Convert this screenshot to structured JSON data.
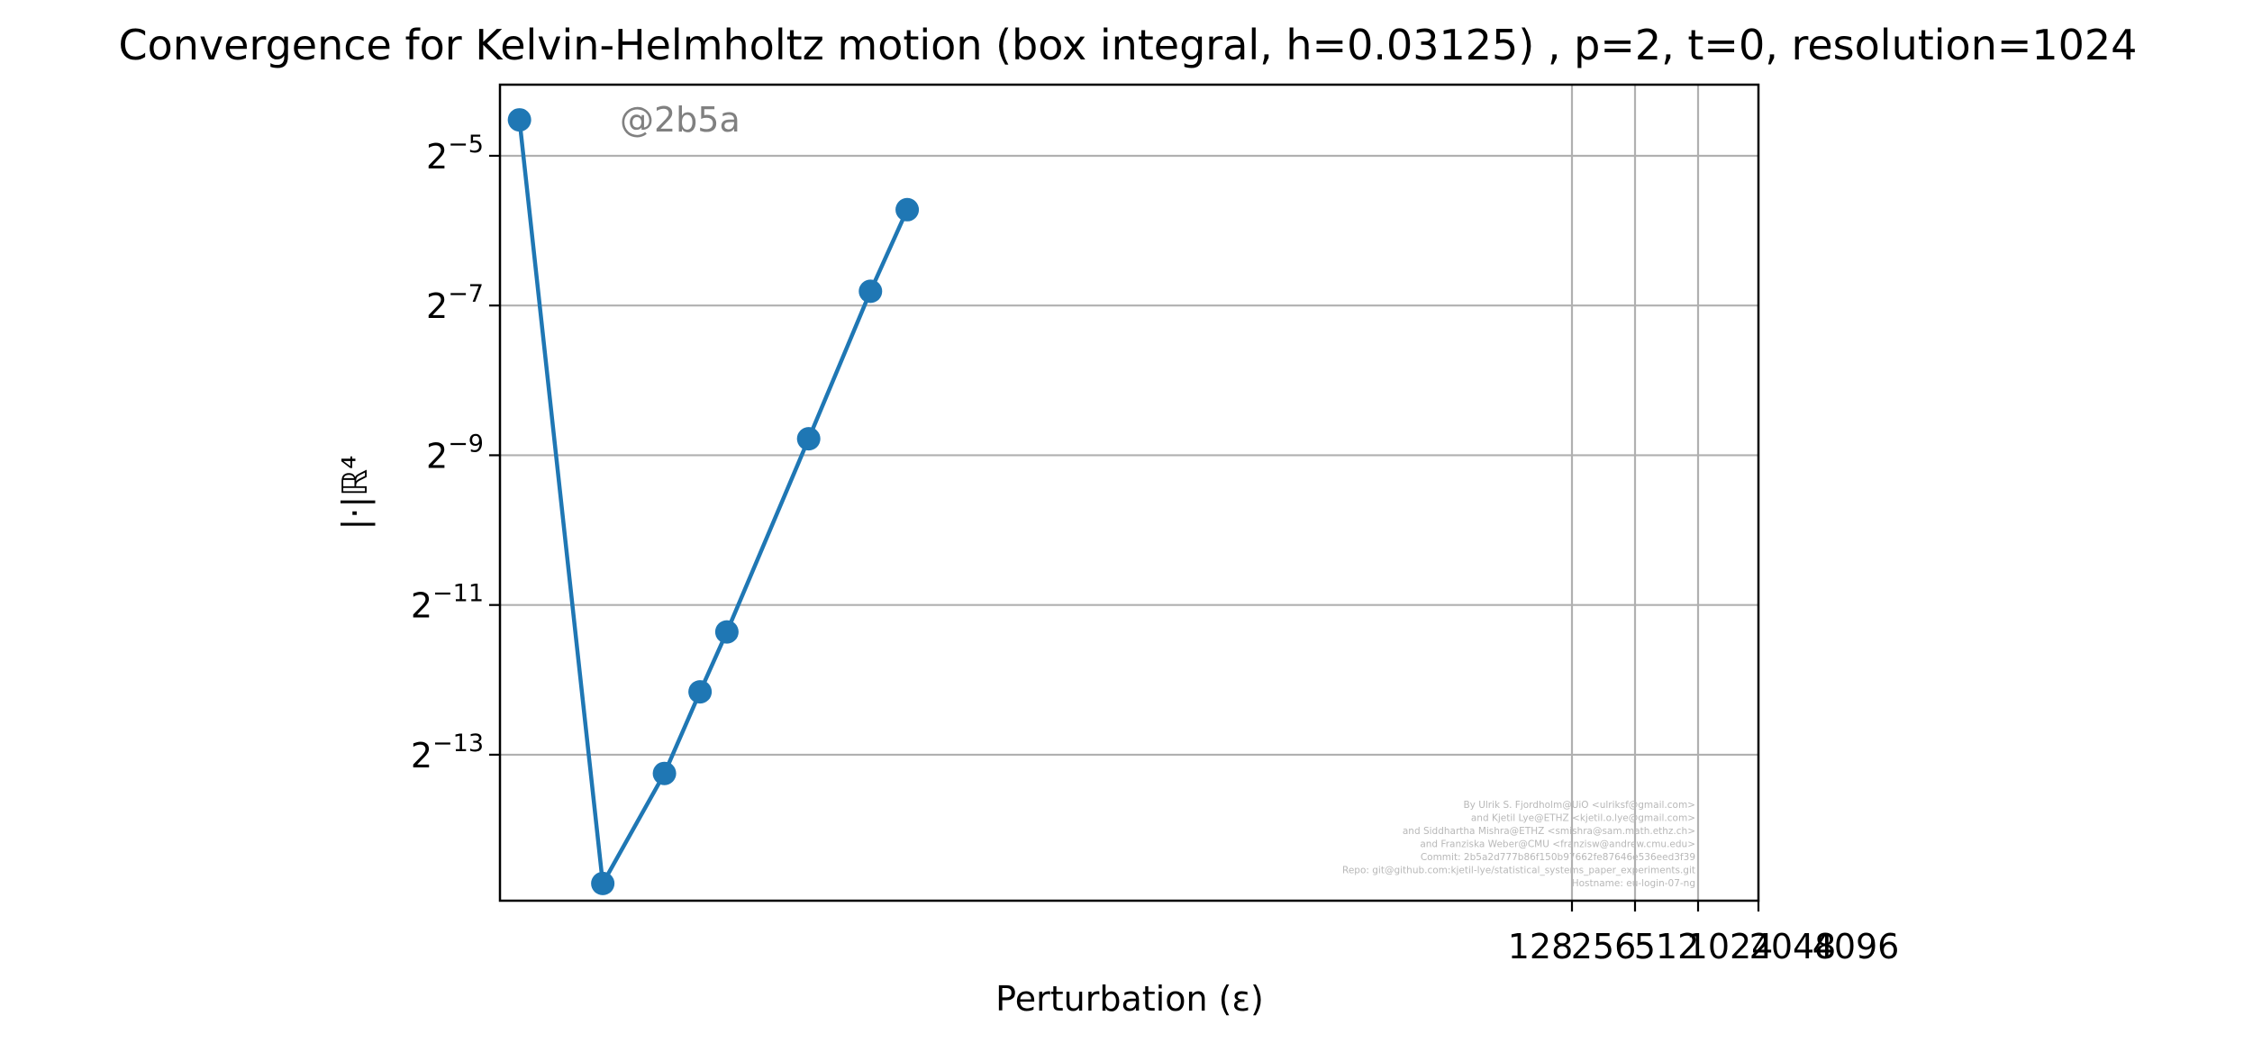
{
  "chart_data": {
    "type": "line",
    "title": "Convergence for Kelvin-Helmholtz motion (box integral, h=0.03125) , p=2, t=0, resolution=1024",
    "xlabel": "Perturbation (ε)",
    "ylabel": "|·|ℝ⁴",
    "x_scale": "log2",
    "y_scale": "log2",
    "x_tick_labels": [
      "128",
      "256",
      "512",
      "1024",
      "2048",
      "4096"
    ],
    "y_tick_labels": [
      {
        "base": "2",
        "exp": "−5",
        "exp_value": -5
      },
      {
        "base": "2",
        "exp": "−7",
        "exp_value": -7
      },
      {
        "base": "2",
        "exp": "−9",
        "exp_value": -9
      },
      {
        "base": "2",
        "exp": "−11",
        "exp_value": -11
      },
      {
        "base": "2",
        "exp": "−13",
        "exp_value": -13
      }
    ],
    "ylim_log2": [
      -14.95,
      -4.05
    ],
    "grid": true,
    "series": [
      {
        "color": "#1f77b4",
        "points_log2_y": [
          -4.52,
          -14.72,
          -13.25,
          -12.16,
          -11.36,
          -8.78,
          -6.81,
          -5.72
        ],
        "point_pixel_x_hint": "fraction-of-axis"
      }
    ],
    "x_fraction": [
      0.0155,
      0.0817,
      0.1307,
      0.159,
      0.1803,
      0.2453,
      0.2944,
      0.3236
    ],
    "watermark": "@2b5a",
    "credits": [
      "By Ulrik S. Fjordholm@UiO <ulriksf@gmail.com>",
      "and Kjetil Lye@ETHZ <kjetil.o.lye@gmail.com>",
      "and Siddhartha Mishra@ETHZ <smishra@sam.math.ethz.ch>",
      "and Franziska Weber@CMU <franzisw@andrew.cmu.edu>",
      "Commit: 2b5a2d777b86f150b97662fe87646e536eed3f39",
      "Repo: git@github.com:kjetil-lye/statistical_systems_paper_experiments.git",
      "Hostname: eu-login-07-ng"
    ]
  }
}
